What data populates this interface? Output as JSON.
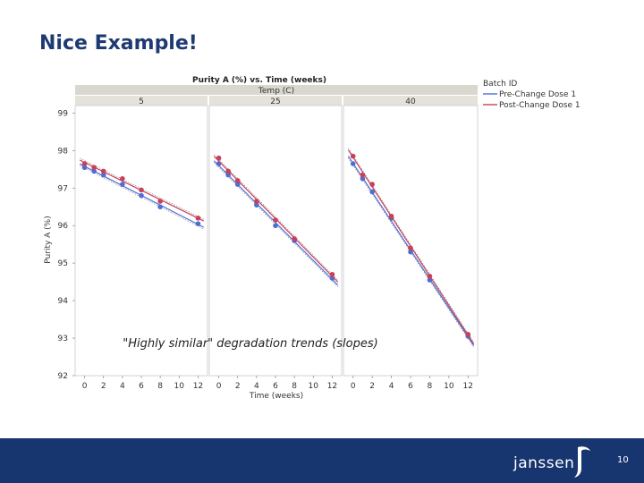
{
  "slide": {
    "title": "Nice Example!",
    "page_number": "10",
    "logo_text": "janssen"
  },
  "chart_data": {
    "type": "line",
    "title": "Purity A (%) vs. Time (weeks)",
    "panel_header": "Temp (C)",
    "panels": [
      "5",
      "25",
      "40"
    ],
    "xlabel": "Time (weeks)",
    "ylabel": "Purity A (%)",
    "xticks": [
      0,
      2,
      4,
      6,
      8,
      10,
      12
    ],
    "yticks": [
      92,
      93,
      94,
      95,
      96,
      97,
      98,
      99
    ],
    "xlim": [
      -1,
      13
    ],
    "ylim": [
      92,
      99.2
    ],
    "legend": {
      "title": "Batch ID",
      "position": "top-right"
    },
    "annotation": "\"Highly similar\" degradation trends (slopes)",
    "series": [
      {
        "name": "Pre-Change Dose 1",
        "color": "#4b6fd6",
        "points": [
          [
            [
              0,
              97.55
            ],
            [
              1,
              97.45
            ],
            [
              2,
              97.35
            ],
            [
              4,
              97.1
            ],
            [
              6,
              96.8
            ],
            [
              8,
              96.5
            ],
            [
              12,
              96.05
            ]
          ],
          [
            [
              0,
              97.65
            ],
            [
              1,
              97.35
            ],
            [
              2,
              97.1
            ],
            [
              4,
              96.55
            ],
            [
              6,
              96.0
            ],
            [
              8,
              95.6
            ],
            [
              12,
              94.6
            ]
          ],
          [
            [
              0,
              97.65
            ],
            [
              1,
              97.25
            ],
            [
              2,
              96.9
            ],
            [
              4,
              96.2
            ],
            [
              6,
              95.3
            ],
            [
              8,
              94.55
            ],
            [
              12,
              93.05
            ]
          ]
        ]
      },
      {
        "name": "Post-Change Dose 1",
        "color": "#c8405a",
        "points": [
          [
            [
              0,
              97.65
            ],
            [
              1,
              97.55
            ],
            [
              2,
              97.45
            ],
            [
              4,
              97.25
            ],
            [
              6,
              96.95
            ],
            [
              8,
              96.65
            ],
            [
              12,
              96.2
            ]
          ],
          [
            [
              0,
              97.8
            ],
            [
              1,
              97.45
            ],
            [
              2,
              97.2
            ],
            [
              4,
              96.65
            ],
            [
              6,
              96.15
            ],
            [
              8,
              95.65
            ],
            [
              12,
              94.7
            ]
          ],
          [
            [
              0,
              97.85
            ],
            [
              1,
              97.35
            ],
            [
              2,
              97.1
            ],
            [
              4,
              96.25
            ],
            [
              6,
              95.4
            ],
            [
              8,
              94.65
            ],
            [
              12,
              93.1
            ]
          ]
        ]
      }
    ]
  }
}
